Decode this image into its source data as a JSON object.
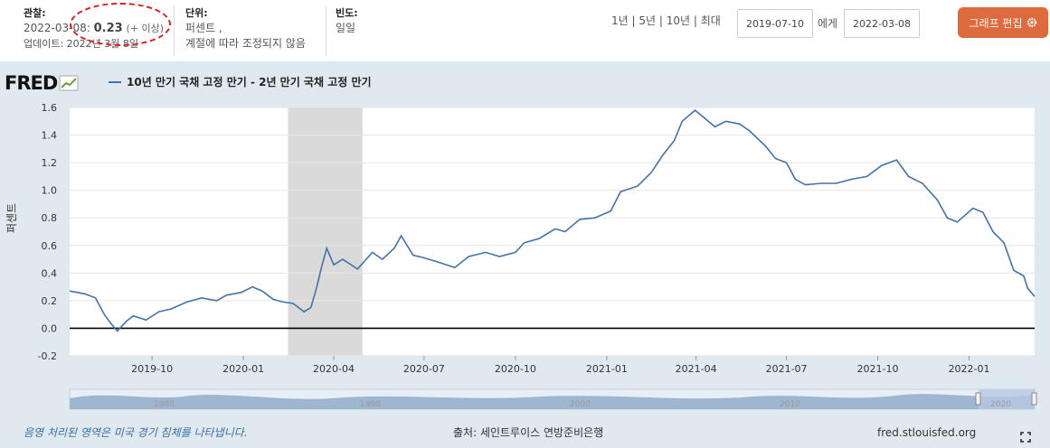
{
  "header": {
    "observation_label": "관찰:",
    "observation_date": "2022-03-08:",
    "observation_value": "0.23",
    "observation_note": "(+ 이상)",
    "updated": "업데이트: 2022년 3월 8일",
    "units_label": "단위:",
    "units_line1": "퍼센트 ,",
    "units_line2": "계절에 따라 조정되지 않음",
    "frequency_label": "빈도:",
    "frequency_value": "일일",
    "range_buttons": [
      "1년",
      "5년",
      "10년",
      "최대"
    ],
    "date_from": "2019-07-10",
    "to_label": "에게",
    "date_to": "2022-03-08",
    "edit_button": "그래프 편집"
  },
  "logo": "FRED",
  "legend_label": "10년 만기 국채 고정 만기 - 2년 만기 국채 고정 만기",
  "footer": {
    "note": "음영 처리된 영역은 미국 경기 침체를 나타냅니다.",
    "source": "출처: 세인트루이스 연방준비은행",
    "site": "fred.stlouisfed.org"
  },
  "navigator_labels": [
    "1980",
    "1990",
    "2000",
    "2010",
    "2020"
  ],
  "colors": {
    "line": "#4572a7",
    "recession": "#dadada",
    "annotation": "#e01b1b",
    "button": "#dd6b3d"
  },
  "chart_data": {
    "type": "line",
    "ylabel": "퍼센트",
    "ylim": [
      -0.2,
      1.6
    ],
    "yticks": [
      "1.6",
      "1.4",
      "1.2",
      "1.0",
      "0.8",
      "0.6",
      "0.4",
      "0.2",
      "0.0",
      "-0.2"
    ],
    "xticks": [
      "2019-10",
      "2020-01",
      "2020-04",
      "2020-07",
      "2020-10",
      "2021-01",
      "2021-04",
      "2021-07",
      "2021-10",
      "2022-01"
    ],
    "xlim": [
      "2019-07-10",
      "2022-03-08"
    ],
    "recession": [
      "2020-02-15",
      "2020-04-30"
    ],
    "series": [
      {
        "name": "10년 만기 국채 고정 만기 - 2년 만기 국채 고정 만기",
        "points": [
          [
            "2019-07-10",
            0.27
          ],
          [
            "2019-07-25",
            0.25
          ],
          [
            "2019-08-05",
            0.22
          ],
          [
            "2019-08-14",
            0.1
          ],
          [
            "2019-08-20",
            0.04
          ],
          [
            "2019-08-27",
            -0.02
          ],
          [
            "2019-09-05",
            0.05
          ],
          [
            "2019-09-12",
            0.09
          ],
          [
            "2019-09-25",
            0.06
          ],
          [
            "2019-10-08",
            0.12
          ],
          [
            "2019-10-20",
            0.14
          ],
          [
            "2019-11-05",
            0.19
          ],
          [
            "2019-11-20",
            0.22
          ],
          [
            "2019-12-05",
            0.2
          ],
          [
            "2019-12-15",
            0.24
          ],
          [
            "2019-12-30",
            0.26
          ],
          [
            "2020-01-10",
            0.3
          ],
          [
            "2020-01-20",
            0.27
          ],
          [
            "2020-01-31",
            0.21
          ],
          [
            "2020-02-10",
            0.19
          ],
          [
            "2020-02-20",
            0.18
          ],
          [
            "2020-03-02",
            0.12
          ],
          [
            "2020-03-09",
            0.15
          ],
          [
            "2020-03-15",
            0.3
          ],
          [
            "2020-03-20",
            0.45
          ],
          [
            "2020-03-25",
            0.58
          ],
          [
            "2020-04-01",
            0.46
          ],
          [
            "2020-04-10",
            0.5
          ],
          [
            "2020-04-25",
            0.43
          ],
          [
            "2020-05-10",
            0.55
          ],
          [
            "2020-05-20",
            0.5
          ],
          [
            "2020-06-01",
            0.58
          ],
          [
            "2020-06-08",
            0.67
          ],
          [
            "2020-06-20",
            0.53
          ],
          [
            "2020-07-01",
            0.51
          ],
          [
            "2020-07-15",
            0.48
          ],
          [
            "2020-08-01",
            0.44
          ],
          [
            "2020-08-15",
            0.52
          ],
          [
            "2020-09-01",
            0.55
          ],
          [
            "2020-09-15",
            0.52
          ],
          [
            "2020-10-01",
            0.55
          ],
          [
            "2020-10-10",
            0.62
          ],
          [
            "2020-10-25",
            0.65
          ],
          [
            "2020-11-10",
            0.72
          ],
          [
            "2020-11-20",
            0.7
          ],
          [
            "2020-12-05",
            0.79
          ],
          [
            "2020-12-20",
            0.8
          ],
          [
            "2021-01-05",
            0.85
          ],
          [
            "2021-01-15",
            0.99
          ],
          [
            "2021-02-01",
            1.03
          ],
          [
            "2021-02-15",
            1.13
          ],
          [
            "2021-02-26",
            1.25
          ],
          [
            "2021-03-10",
            1.36
          ],
          [
            "2021-03-18",
            1.5
          ],
          [
            "2021-03-31",
            1.58
          ],
          [
            "2021-04-10",
            1.52
          ],
          [
            "2021-04-20",
            1.46
          ],
          [
            "2021-05-01",
            1.5
          ],
          [
            "2021-05-15",
            1.48
          ],
          [
            "2021-05-25",
            1.43
          ],
          [
            "2021-06-10",
            1.32
          ],
          [
            "2021-06-20",
            1.23
          ],
          [
            "2021-07-01",
            1.2
          ],
          [
            "2021-07-10",
            1.08
          ],
          [
            "2021-07-20",
            1.04
          ],
          [
            "2021-08-05",
            1.05
          ],
          [
            "2021-08-20",
            1.05
          ],
          [
            "2021-09-05",
            1.08
          ],
          [
            "2021-09-20",
            1.1
          ],
          [
            "2021-10-05",
            1.18
          ],
          [
            "2021-10-20",
            1.22
          ],
          [
            "2021-11-01",
            1.1
          ],
          [
            "2021-11-15",
            1.05
          ],
          [
            "2021-11-30",
            0.93
          ],
          [
            "2021-12-10",
            0.8
          ],
          [
            "2021-12-20",
            0.77
          ],
          [
            "2022-01-05",
            0.87
          ],
          [
            "2022-01-15",
            0.84
          ],
          [
            "2022-01-25",
            0.7
          ],
          [
            "2022-02-05",
            0.62
          ],
          [
            "2022-02-15",
            0.42
          ],
          [
            "2022-02-25",
            0.38
          ],
          [
            "2022-03-01",
            0.29
          ],
          [
            "2022-03-08",
            0.23
          ]
        ]
      }
    ]
  }
}
